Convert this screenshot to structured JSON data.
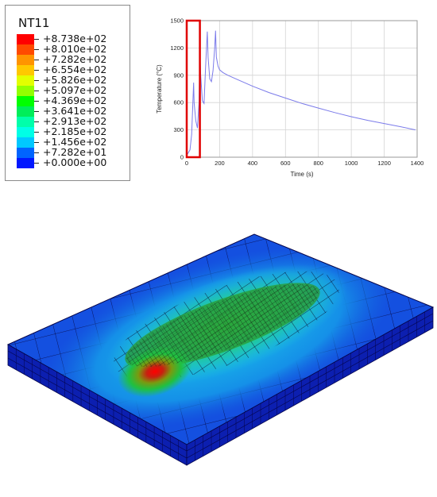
{
  "legend": {
    "title": "NT11",
    "entries": [
      {
        "label": "+8.738e+02",
        "color": "#ff0000"
      },
      {
        "label": "+8.010e+02",
        "color": "#ff4a00"
      },
      {
        "label": "+7.282e+02",
        "color": "#ff9400"
      },
      {
        "label": "+6.554e+02",
        "color": "#ffc800"
      },
      {
        "label": "+5.826e+02",
        "color": "#e3ff00"
      },
      {
        "label": "+5.097e+02",
        "color": "#93ff00"
      },
      {
        "label": "+4.369e+02",
        "color": "#00ff00"
      },
      {
        "label": "+3.641e+02",
        "color": "#00ee5a"
      },
      {
        "label": "+2.913e+02",
        "color": "#00ffaa"
      },
      {
        "label": "+2.185e+02",
        "color": "#00ffe6"
      },
      {
        "label": "+1.456e+02",
        "color": "#00c8ff"
      },
      {
        "label": "+7.282e+01",
        "color": "#0064ff"
      },
      {
        "label": "+0.000e+00",
        "color": "#0018ff"
      }
    ]
  },
  "chart_data": {
    "type": "line",
    "xlabel": "Time (s)",
    "ylabel": "Temperature (°C)",
    "xlim": [
      0,
      1400
    ],
    "ylim": [
      0,
      1500
    ],
    "xticks": [
      "0",
      "200",
      "400",
      "600",
      "800",
      "1000",
      "1200",
      "1400"
    ],
    "yticks": [
      "0",
      "300",
      "600",
      "900",
      "1200",
      "1500"
    ],
    "grid": true,
    "series_color": "#7b7bea",
    "highlight_range_x": [
      0,
      80
    ],
    "highlight_color": "#e00000",
    "x": [
      0,
      20,
      30,
      35,
      42,
      45,
      55,
      65,
      75,
      80,
      85,
      95,
      105,
      115,
      125,
      130,
      140,
      150,
      160,
      170,
      175,
      180,
      190,
      200,
      220,
      250,
      300,
      400,
      500,
      600,
      700,
      800,
      900,
      1000,
      1100,
      1200,
      1300,
      1390
    ],
    "y": [
      20,
      80,
      250,
      500,
      820,
      600,
      400,
      320,
      600,
      1150,
      900,
      620,
      590,
      1000,
      1380,
      1100,
      860,
      830,
      950,
      1200,
      1390,
      1100,
      1000,
      960,
      930,
      900,
      860,
      780,
      710,
      650,
      590,
      540,
      490,
      445,
      405,
      370,
      335,
      300
    ]
  },
  "model": {
    "description_colors": {
      "edge": "#1010cc",
      "side": "#0a0a9a"
    }
  }
}
